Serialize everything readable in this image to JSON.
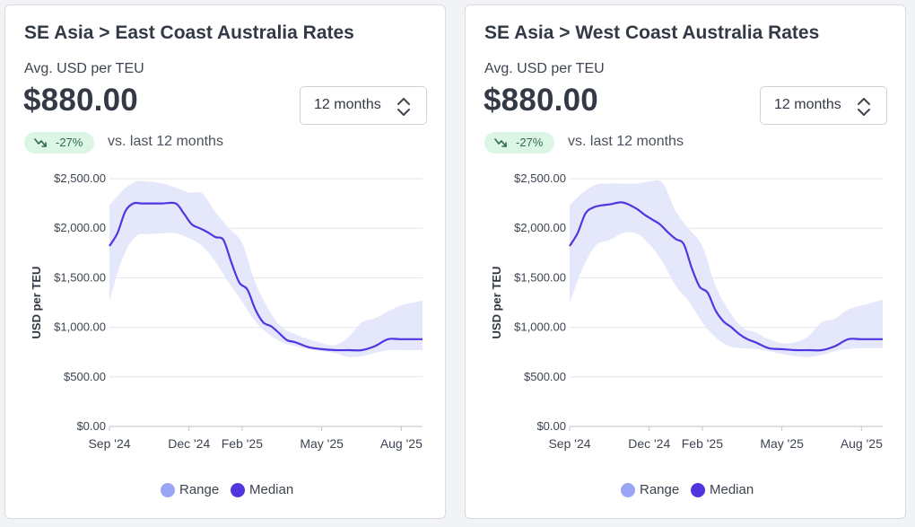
{
  "panels": [
    {
      "title": "SE Asia > East Coast Australia Rates",
      "metric_label": "Avg. USD per TEU",
      "metric_value": "$880.00",
      "period": "12 months",
      "change_pct": "-27%",
      "change_text": "vs. last 12 months"
    },
    {
      "title": "SE Asia > West Coast Australia Rates",
      "metric_label": "Avg. USD per TEU",
      "metric_value": "$880.00",
      "period": "12 months",
      "change_pct": "-27%",
      "change_text": "vs. last 12 months"
    }
  ],
  "legend": {
    "range": "Range",
    "median": "Median"
  },
  "colors": {
    "median": "#5136e0",
    "range_fill": "#e5e7fb",
    "range_dot": "#9aa5f3",
    "badge_bg": "#dcf6e6",
    "badge_text": "#2f6b45"
  },
  "chart_data": [
    {
      "type": "area",
      "title": "SE Asia > East Coast Australia Rates",
      "xlabel": "",
      "ylabel": "USD per TEU",
      "ylim": [
        0,
        2500
      ],
      "yticks": [
        0,
        500,
        1000,
        1500,
        2000,
        2500
      ],
      "ytick_labels": [
        "$0.00",
        "$500.00",
        "$1,000.00",
        "$1,500.00",
        "$2,000.00",
        "$2,500.00"
      ],
      "x_range": [
        0,
        11.8
      ],
      "xticks": [
        0,
        3,
        5,
        8,
        11
      ],
      "xtick_labels": [
        "Sep '24",
        "Dec '24",
        "Feb '25",
        "May '25",
        "Aug '25"
      ],
      "grid": true,
      "legend_position": "bottom",
      "series": [
        {
          "name": "Median",
          "x": [
            0,
            0.3,
            0.6,
            0.9,
            1.2,
            1.5,
            2.0,
            2.5,
            2.8,
            3.1,
            3.4,
            3.7,
            4.0,
            4.3,
            4.6,
            4.9,
            5.2,
            5.5,
            5.8,
            6.1,
            6.4,
            6.7,
            7.0,
            7.5,
            8.0,
            8.5,
            9.0,
            9.5,
            10.0,
            10.5,
            11.0,
            11.8
          ],
          "y": [
            1820,
            1950,
            2170,
            2250,
            2250,
            2250,
            2250,
            2250,
            2150,
            2040,
            2000,
            1960,
            1910,
            1880,
            1650,
            1450,
            1380,
            1180,
            1050,
            1010,
            940,
            870,
            850,
            800,
            780,
            770,
            770,
            770,
            810,
            880,
            880,
            880
          ]
        },
        {
          "name": "Range",
          "x": [
            0,
            0.5,
            1.0,
            1.5,
            2.0,
            2.5,
            3.0,
            3.5,
            4.0,
            4.5,
            5.0,
            5.5,
            6.0,
            6.5,
            7.0,
            7.5,
            8.0,
            8.5,
            9.0,
            9.5,
            10.0,
            10.5,
            11.0,
            11.8
          ],
          "low": [
            1270,
            1700,
            1920,
            1940,
            1950,
            1950,
            1900,
            1820,
            1660,
            1450,
            1260,
            1060,
            930,
            850,
            810,
            780,
            760,
            740,
            700,
            710,
            740,
            770,
            770,
            770
          ],
          "high": [
            2230,
            2380,
            2470,
            2470,
            2450,
            2410,
            2360,
            2350,
            2160,
            2000,
            1850,
            1450,
            1180,
            1000,
            930,
            880,
            840,
            820,
            900,
            1050,
            1090,
            1160,
            1220,
            1270
          ]
        }
      ]
    },
    {
      "type": "area",
      "title": "SE Asia > West Coast Australia Rates",
      "xlabel": "",
      "ylabel": "USD per TEU",
      "ylim": [
        0,
        2500
      ],
      "yticks": [
        0,
        500,
        1000,
        1500,
        2000,
        2500
      ],
      "ytick_labels": [
        "$0.00",
        "$500.00",
        "$1,000.00",
        "$1,500.00",
        "$2,000.00",
        "$2,500.00"
      ],
      "x_range": [
        0,
        11.8
      ],
      "xticks": [
        0,
        3,
        5,
        8,
        11
      ],
      "xtick_labels": [
        "Sep '24",
        "Dec '24",
        "Feb '25",
        "May '25",
        "Aug '25"
      ],
      "grid": true,
      "legend_position": "bottom",
      "series": [
        {
          "name": "Median",
          "x": [
            0,
            0.3,
            0.6,
            0.9,
            1.2,
            1.5,
            2.0,
            2.5,
            2.8,
            3.1,
            3.4,
            3.7,
            4.0,
            4.3,
            4.6,
            4.9,
            5.2,
            5.5,
            5.8,
            6.1,
            6.4,
            6.7,
            7.0,
            7.5,
            8.0,
            8.5,
            9.0,
            9.5,
            10.0,
            10.5,
            11.0,
            11.8
          ],
          "y": [
            1820,
            1950,
            2150,
            2210,
            2230,
            2240,
            2260,
            2200,
            2140,
            2090,
            2040,
            1960,
            1890,
            1840,
            1600,
            1410,
            1350,
            1170,
            1060,
            1000,
            930,
            880,
            850,
            790,
            780,
            770,
            770,
            770,
            810,
            880,
            880,
            880
          ]
        },
        {
          "name": "Range",
          "x": [
            0,
            0.5,
            1.0,
            1.5,
            2.0,
            2.5,
            3.0,
            3.5,
            4.0,
            4.5,
            5.0,
            5.5,
            6.0,
            6.5,
            7.0,
            7.5,
            8.0,
            8.5,
            9.0,
            9.5,
            10.0,
            10.5,
            11.0,
            11.8
          ],
          "low": [
            1250,
            1600,
            1830,
            1880,
            1950,
            1950,
            1840,
            1660,
            1420,
            1260,
            1050,
            900,
            810,
            790,
            780,
            760,
            730,
            710,
            700,
            720,
            760,
            780,
            790,
            790
          ],
          "high": [
            2230,
            2360,
            2440,
            2450,
            2450,
            2450,
            2470,
            2460,
            2170,
            1990,
            1820,
            1420,
            1170,
            1000,
            950,
            880,
            840,
            850,
            910,
            1050,
            1090,
            1180,
            1220,
            1280
          ]
        }
      ]
    }
  ]
}
